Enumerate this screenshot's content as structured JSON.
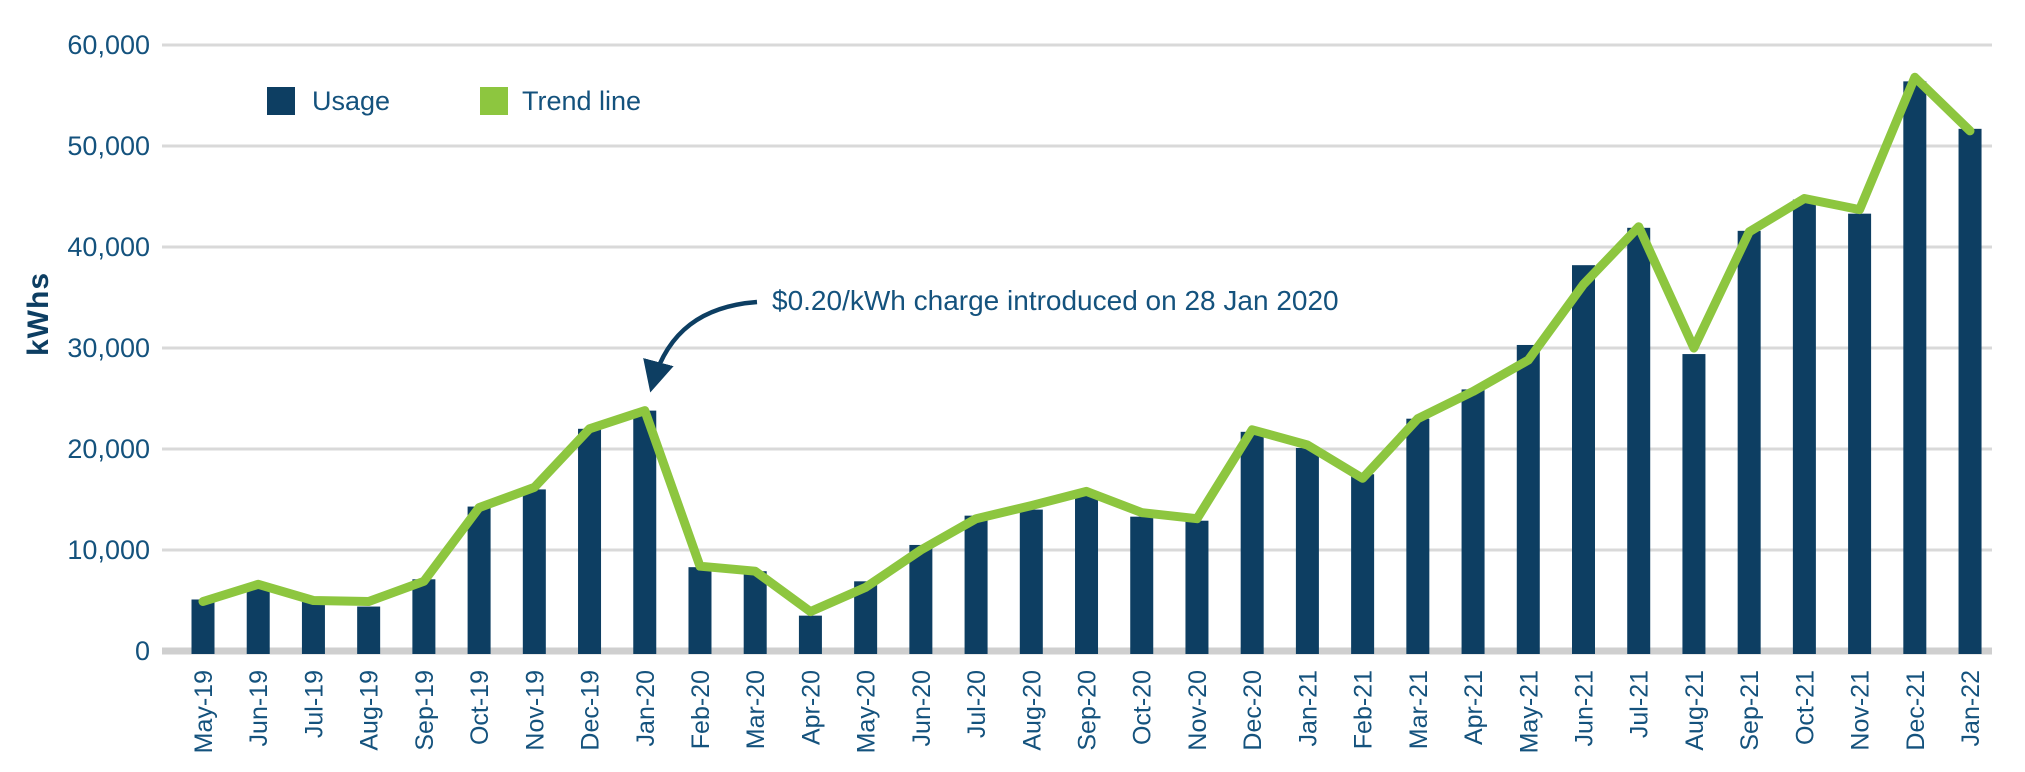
{
  "chart_data": {
    "type": "bar",
    "title": "",
    "xlabel": "",
    "ylabel": "kWhs",
    "ylim": [
      0,
      60000
    ],
    "ytick_step": 10000,
    "ytick_labels": [
      "0",
      "10,000",
      "20,000",
      "30,000",
      "40,000",
      "50,000",
      "60,000"
    ],
    "grid": true,
    "legend_position": "top-left",
    "categories": [
      "May-19",
      "Jun-19",
      "Jul-19",
      "Aug-19",
      "Sep-19",
      "Oct-19",
      "Nov-19",
      "Dec-19",
      "Jan-20",
      "Feb-20",
      "Mar-20",
      "Apr-20",
      "May-20",
      "Jun-20",
      "Jul-20",
      "Aug-20",
      "Sep-20",
      "Oct-20",
      "Nov-20",
      "Dec-20",
      "Jan-21",
      "Feb-21",
      "Mar-21",
      "Apr-21",
      "May-21",
      "Jun-21",
      "Jul-21",
      "Aug-21",
      "Sep-21",
      "Oct-21",
      "Nov-21",
      "Dec-21",
      "Jan-22"
    ],
    "series": [
      {
        "name": "Usage",
        "type": "bar",
        "color": "#0d3e62",
        "values": [
          5100,
          6400,
          4900,
          4400,
          7100,
          14300,
          16000,
          22000,
          23800,
          8300,
          7900,
          3500,
          6900,
          10500,
          13400,
          14000,
          15400,
          13300,
          12900,
          21700,
          20100,
          17500,
          23000,
          25900,
          30300,
          38200,
          41900,
          29400,
          41600,
          44700,
          43300,
          56400,
          51700
        ]
      },
      {
        "name": "Trend line",
        "type": "line",
        "color": "#8dc63f",
        "values": [
          4900,
          6600,
          5000,
          4900,
          6900,
          14200,
          16200,
          22000,
          23800,
          8400,
          7900,
          3900,
          6300,
          10000,
          13100,
          14400,
          15800,
          13700,
          13100,
          21900,
          20400,
          17100,
          23000,
          25700,
          28800,
          36300,
          42000,
          30000,
          41500,
          44800,
          43700,
          56800,
          51500
        ]
      }
    ],
    "annotation": {
      "text": "$0.20/kWh charge introduced on 28 Jan 2020",
      "target_category": "Jan-20"
    }
  },
  "legend": {
    "usage_label": "Usage",
    "trend_label": "Trend line"
  },
  "y_axis": {
    "title": "kWhs"
  },
  "annotation": {
    "text": "$0.20/kWh charge introduced on 28 Jan 2020"
  },
  "colors": {
    "bar": "#0d3e62",
    "trend": "#8dc63f",
    "axis_text": "#14527d",
    "gridline": "#d9d9d9",
    "baseline": "#cfcfcf",
    "annotation_arrow": "#0d3e62"
  }
}
